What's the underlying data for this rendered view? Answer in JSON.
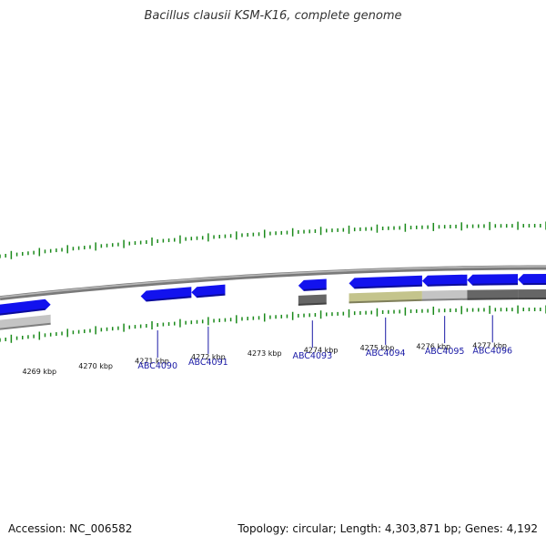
{
  "title": "Bacillus clausii KSM-K16, complete genome",
  "footer": {
    "accession": "Accession: NC_006582",
    "summary": "Topology: circular; Length: 4,303,871 bp; Genes: 4,192"
  },
  "colors": {
    "gene_forward": "#1212ee",
    "gene_dark": "#666666",
    "gene_light": "#c4c4c4",
    "gene_olive": "#c4c48c",
    "tick": "#1a8a1a",
    "backbone": "#8a8a8a",
    "label": "#1a1aa6"
  },
  "genes_visible_kbp": [
    {
      "start": 4268.3,
      "end": 4269.2,
      "color_key": "gene_forward",
      "track": "forward",
      "arrow": "right"
    },
    {
      "start": 4268.3,
      "end": 4269.2,
      "color_key": "gene_light",
      "track": "inner",
      "arrow": "none"
    },
    {
      "start": 4270.8,
      "end": 4271.7,
      "color_key": "gene_forward",
      "track": "forward",
      "arrow": "left"
    },
    {
      "start": 4271.7,
      "end": 4272.3,
      "color_key": "gene_forward",
      "track": "forward",
      "arrow": "left"
    },
    {
      "start": 4273.6,
      "end": 4274.1,
      "color_key": "gene_forward",
      "track": "forward",
      "arrow": "left"
    },
    {
      "start": 4273.6,
      "end": 4274.1,
      "color_key": "gene_dark",
      "track": "inner",
      "arrow": "none"
    },
    {
      "start": 4274.5,
      "end": 4275.8,
      "color_key": "gene_forward",
      "track": "forward",
      "arrow": "left"
    },
    {
      "start": 4274.5,
      "end": 4275.8,
      "color_key": "gene_olive",
      "track": "inner",
      "arrow": "none"
    },
    {
      "start": 4275.8,
      "end": 4276.6,
      "color_key": "gene_forward",
      "track": "forward",
      "arrow": "left"
    },
    {
      "start": 4275.8,
      "end": 4276.6,
      "color_key": "gene_light",
      "track": "inner",
      "arrow": "none"
    },
    {
      "start": 4276.6,
      "end": 4277.5,
      "color_key": "gene_forward",
      "track": "forward",
      "arrow": "left"
    },
    {
      "start": 4276.6,
      "end": 4277.5,
      "color_key": "gene_dark",
      "track": "inner",
      "arrow": "none"
    },
    {
      "start": 4277.5,
      "end": 4278.0,
      "color_key": "gene_forward",
      "track": "forward",
      "arrow": "left"
    },
    {
      "start": 4277.5,
      "end": 4278.0,
      "color_key": "gene_dark",
      "track": "inner",
      "arrow": "none"
    }
  ],
  "kbp_labels": [
    {
      "kbp": 4269,
      "text": "4269 kbp"
    },
    {
      "kbp": 4270,
      "text": "4270 kbp"
    },
    {
      "kbp": 4271,
      "text": "4271 kbp"
    },
    {
      "kbp": 4272,
      "text": "4272 kbp"
    },
    {
      "kbp": 4273,
      "text": "4273 kbp"
    },
    {
      "kbp": 4274,
      "text": "4274 kbp"
    },
    {
      "kbp": 4275,
      "text": "4275 kbp"
    },
    {
      "kbp": 4276,
      "text": "4276 kbp"
    },
    {
      "kbp": 4277,
      "text": "4277 kbp"
    }
  ],
  "gene_labels": [
    {
      "kbp": 4271.1,
      "text": "ABC4090"
    },
    {
      "kbp": 4272.0,
      "text": "ABC4091"
    },
    {
      "kbp": 4273.85,
      "text": "ABC4093"
    },
    {
      "kbp": 4275.15,
      "text": "ABC4094"
    },
    {
      "kbp": 4276.2,
      "text": "ABC4095"
    },
    {
      "kbp": 4277.05,
      "text": "ABC4096"
    }
  ],
  "view_kbp_range": [
    4268.3,
    4278.0
  ]
}
